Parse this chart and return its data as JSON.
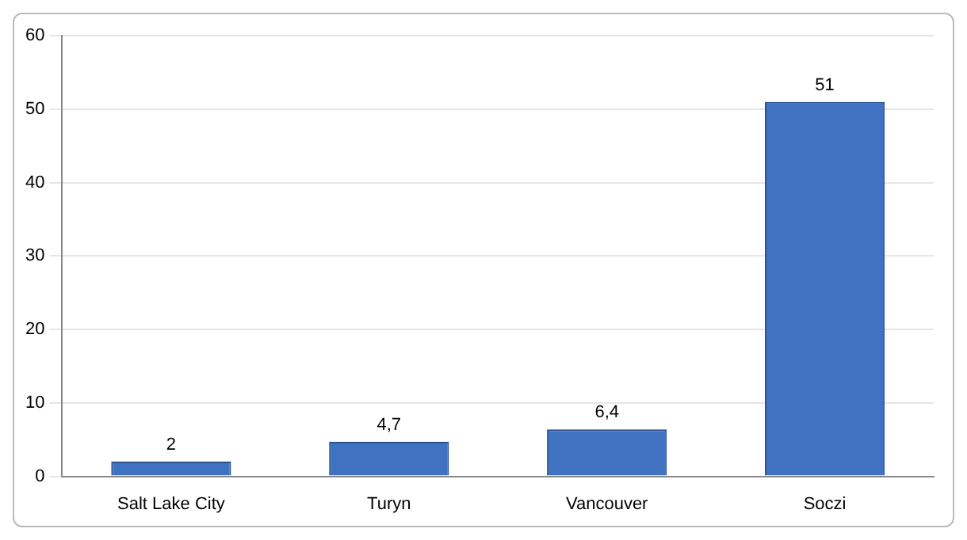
{
  "chart_data": {
    "type": "bar",
    "categories": [
      "Salt Lake City",
      "Turyn",
      "Vancouver",
      "Soczi"
    ],
    "values": [
      2,
      4.7,
      6.4,
      51
    ],
    "color": "#3f72c0",
    "value_labels": [
      "2",
      "4,7",
      "6,4",
      "51"
    ],
    "ylim": [
      0,
      60
    ],
    "yticks": [
      0,
      10,
      20,
      30,
      40,
      50,
      60
    ],
    "grid": "y",
    "legend": false
  }
}
